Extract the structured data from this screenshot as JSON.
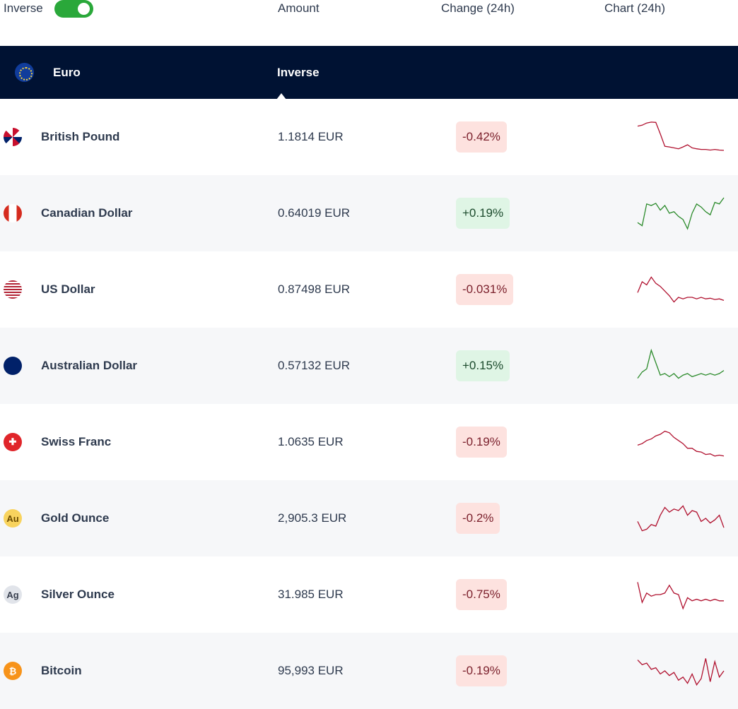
{
  "header": {
    "inverse_label": "Inverse",
    "inverse_on": true,
    "col_amount": "Amount",
    "col_change": "Change (24h)",
    "col_chart": "Chart (24h)"
  },
  "base": {
    "name": "Euro",
    "mode": "Inverse",
    "icon": "eu-flag-icon"
  },
  "colors": {
    "negative": "#b0102e",
    "positive": "#2a8a2a",
    "band": "#001233",
    "toggle": "#2aa83a"
  },
  "rows": [
    {
      "name": "British Pound",
      "icon": "uk-flag-icon",
      "amount": "1.1814 EUR",
      "change": "-0.42%",
      "dir": "neg",
      "spark": [
        85,
        88,
        95,
        98,
        97,
        60,
        20,
        18,
        15,
        12,
        18,
        25,
        15,
        12,
        10,
        10,
        8,
        10,
        8,
        7
      ]
    },
    {
      "name": "Canadian Dollar",
      "icon": "canada-flag-icon",
      "amount": "0.64019 EUR",
      "change": "+0.19%",
      "dir": "pos",
      "spark": [
        20,
        10,
        80,
        75,
        82,
        60,
        75,
        50,
        55,
        40,
        30,
        0,
        50,
        80,
        70,
        55,
        45,
        85,
        80,
        100
      ]
    },
    {
      "name": "US Dollar",
      "icon": "us-flag-icon",
      "amount": "0.87498 EUR",
      "change": "-0.031%",
      "dir": "neg",
      "spark": [
        40,
        75,
        65,
        90,
        70,
        60,
        45,
        30,
        10,
        25,
        20,
        25,
        25,
        20,
        25,
        20,
        22,
        18,
        20,
        15
      ]
    },
    {
      "name": "Australian Dollar",
      "icon": "australia-flag-icon",
      "amount": "0.57132 EUR",
      "change": "+0.15%",
      "dir": "pos",
      "spark": [
        10,
        30,
        40,
        100,
        60,
        20,
        25,
        15,
        25,
        10,
        20,
        25,
        15,
        20,
        25,
        20,
        25,
        20,
        25,
        35
      ]
    },
    {
      "name": "Swiss Franc",
      "icon": "swiss-flag-icon",
      "amount": "1.0635 EUR",
      "change": "-0.19%",
      "dir": "neg",
      "spark": [
        40,
        45,
        55,
        60,
        70,
        75,
        85,
        80,
        65,
        55,
        45,
        30,
        30,
        20,
        18,
        10,
        12,
        5,
        8,
        5
      ]
    },
    {
      "name": "Gold Ounce",
      "icon": "gold-icon",
      "icon_text": "Au",
      "amount": "2,905.3 EUR",
      "change": "-0.2%",
      "dir": "neg",
      "spark": [
        40,
        10,
        15,
        30,
        25,
        60,
        85,
        70,
        80,
        75,
        90,
        60,
        75,
        70,
        40,
        50,
        35,
        45,
        60,
        20
      ]
    },
    {
      "name": "Silver Ounce",
      "icon": "silver-icon",
      "icon_text": "Ag",
      "amount": "31.985 EUR",
      "change": "-0.75%",
      "dir": "neg",
      "spark": [
        90,
        25,
        55,
        45,
        50,
        50,
        55,
        80,
        55,
        50,
        5,
        40,
        30,
        35,
        30,
        35,
        30,
        35,
        30,
        30
      ]
    },
    {
      "name": "Bitcoin",
      "icon": "bitcoin-icon",
      "icon_text": "₿",
      "amount": "95,993 EUR",
      "change": "-0.19%",
      "dir": "neg",
      "spark": [
        85,
        70,
        75,
        55,
        60,
        40,
        50,
        35,
        45,
        20,
        30,
        10,
        40,
        5,
        25,
        90,
        15,
        80,
        30,
        50
      ]
    }
  ]
}
